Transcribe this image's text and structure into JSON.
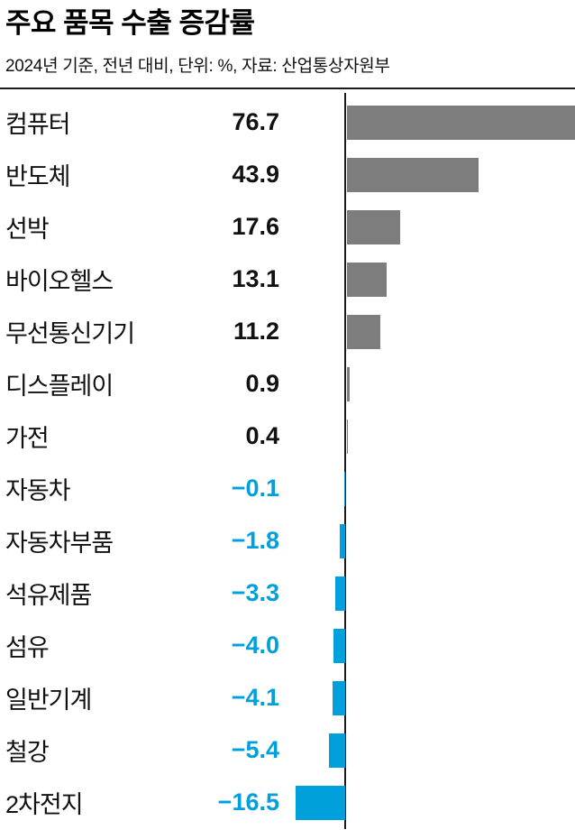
{
  "page": {
    "title": "주요 품목 수출 증감률",
    "subtitle": "2024년 기준, 전년 대비, 단위: %, 자료: 산업통상자원부"
  },
  "chart_data": {
    "type": "bar",
    "orientation": "horizontal",
    "title": "주요 품목 수출 증감률",
    "subtitle": "2024년 기준, 전년 대비, 단위: %, 자료: 산업통상자원부",
    "unit": "%",
    "source": "산업통상자원부",
    "year_basis": "2024년 기준, 전년 대비",
    "categories": [
      "컴퓨터",
      "반도체",
      "선박",
      "바이오헬스",
      "무선통신기기",
      "디스플레이",
      "가전",
      "자동차",
      "자동차부품",
      "석유제품",
      "섬유",
      "일반기계",
      "철강",
      "2차전지"
    ],
    "values": [
      76.7,
      43.9,
      17.6,
      13.1,
      11.2,
      0.9,
      0.4,
      -0.1,
      -1.8,
      -3.3,
      -4.0,
      -4.1,
      -5.4,
      -16.5
    ],
    "value_labels": [
      "76.7",
      "43.9",
      "17.6",
      "13.1",
      "11.2",
      "0.9",
      "0.4",
      "−0.1",
      "−1.8",
      "−3.3",
      "−4.0",
      "−4.1",
      "−5.4",
      "−16.5"
    ],
    "xlim": [
      -20,
      80
    ],
    "grid": false,
    "legend": "none",
    "positive_color": "#7d7d7d",
    "negative_color": "#00a0dd",
    "axis_color": "#1a1a1a"
  }
}
